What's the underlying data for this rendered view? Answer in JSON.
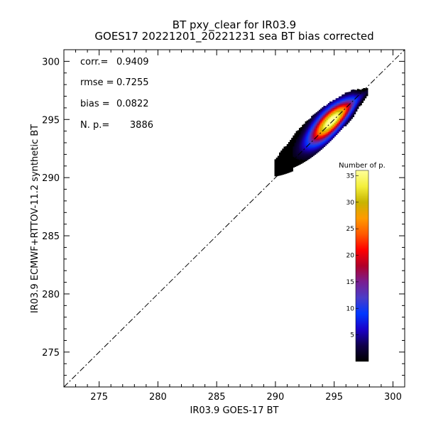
{
  "chart_data": {
    "type": "heatmap",
    "title": "BT pxy_clear for IR03.9",
    "subtitle": "GOES17 20221201_20221231 sea BT bias corrected",
    "xlabel": "IR03.9 GOES-17 BT",
    "ylabel": "IR03.9 ECMWF+RTTOV-11.2 synthetic BT",
    "xlim": [
      272,
      301
    ],
    "ylim": [
      272,
      301
    ],
    "xticks": [
      275,
      280,
      285,
      290,
      295,
      300
    ],
    "yticks": [
      275,
      280,
      285,
      290,
      295,
      300
    ],
    "grid": false,
    "reference_line": {
      "style": "dash-dot",
      "slope": 1,
      "intercept": 0
    },
    "stats": [
      {
        "label": "corr.=",
        "value": "0.9409"
      },
      {
        "label": "rmse =",
        "value": "0.7255"
      },
      {
        "label": "bias =",
        "value": "0.0822"
      },
      {
        "label": "N. p.=",
        "value": "3886"
      }
    ],
    "colorbar": {
      "title": "Number of p.",
      "range": [
        0,
        36
      ],
      "ticks": [
        5,
        10,
        15,
        20,
        25,
        30,
        35
      ],
      "colors": [
        "#000000",
        "#10004a",
        "#1a00c8",
        "#0038ff",
        "#4a3cc8",
        "#7a1e90",
        "#b0002a",
        "#ff0000",
        "#ff5a00",
        "#ff9a00",
        "#c8b400",
        "#f4f03c",
        "#ffff9a"
      ]
    },
    "density": {
      "center": [
        294.8,
        294.9
      ],
      "axis_slope": 0.82,
      "x_range": [
        290.0,
        297.8
      ],
      "max_count": 36
    }
  }
}
